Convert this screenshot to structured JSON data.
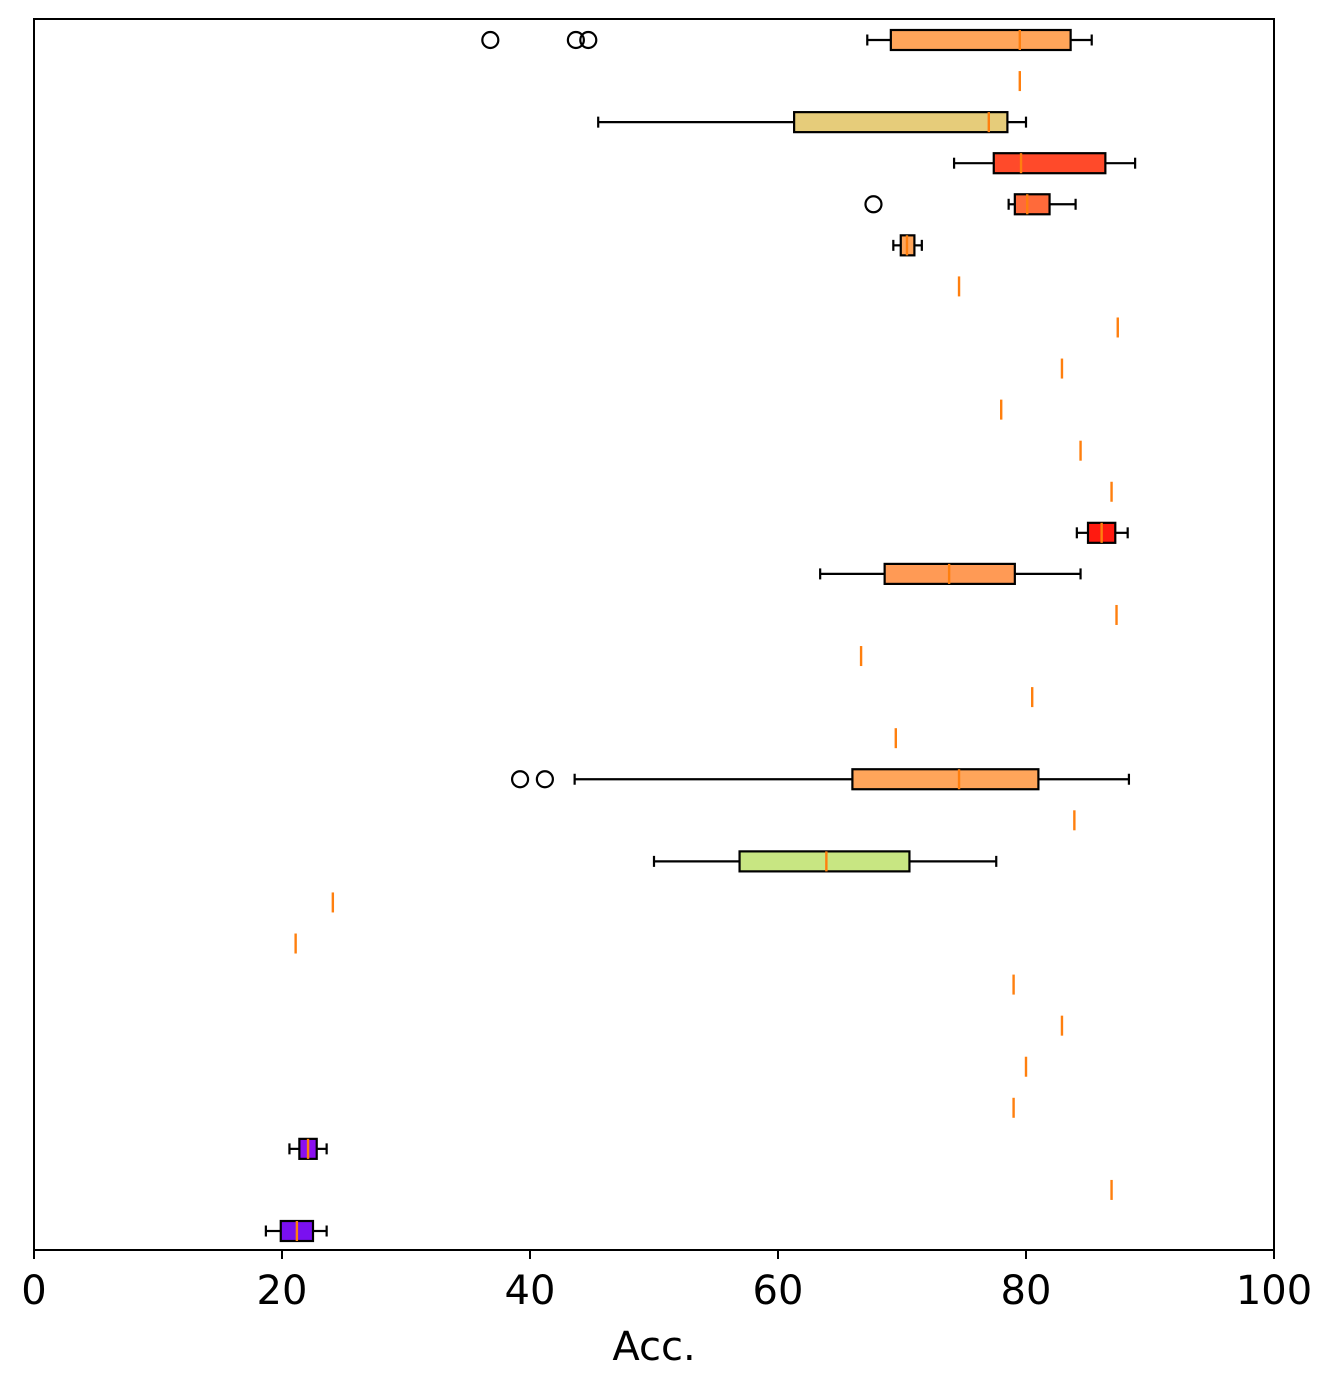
{
  "chart_data": {
    "type": "boxplot-horizontal",
    "title": "",
    "xlabel": "Acc.",
    "ylabel": "",
    "xlim": [
      0,
      100
    ],
    "xticks": [
      0,
      20,
      40,
      60,
      80,
      100
    ],
    "xtick_labels": [
      "0",
      "20",
      "40",
      "60",
      "80",
      "100"
    ],
    "grid": false,
    "median_color": "#ff7f0e",
    "boxes": [
      {
        "whislo": 67.2,
        "q1": 69.1,
        "med": 79.5,
        "q3": 83.6,
        "whishi": 85.3,
        "fliers": [
          36.8,
          43.7,
          44.7
        ],
        "color": "#ffa55a"
      },
      {
        "whislo": 79.5,
        "q1": 79.5,
        "med": 79.5,
        "q3": 79.5,
        "whishi": 79.5,
        "fliers": [],
        "color": "#ffa55a"
      },
      {
        "whislo": 45.5,
        "q1": 61.3,
        "med": 77.0,
        "q3": 78.5,
        "whishi": 80.0,
        "fliers": [],
        "color": "#e6cc7a"
      },
      {
        "whislo": 74.2,
        "q1": 77.4,
        "med": 79.6,
        "q3": 86.4,
        "whishi": 88.8,
        "fliers": [],
        "color": "#ff4a2a"
      },
      {
        "whislo": 78.6,
        "q1": 79.1,
        "med": 80.1,
        "q3": 81.9,
        "whishi": 84.0,
        "fliers": [
          67.7
        ],
        "color": "#ff6a3a"
      },
      {
        "whislo": 69.3,
        "q1": 69.9,
        "med": 70.4,
        "q3": 71.0,
        "whishi": 71.6,
        "fliers": [],
        "color": "#ffa55a"
      },
      {
        "whislo": 74.6,
        "q1": 74.6,
        "med": 74.6,
        "q3": 74.6,
        "whishi": 74.6,
        "fliers": [],
        "color": "#ffa55a"
      },
      {
        "whislo": 87.4,
        "q1": 87.4,
        "med": 87.4,
        "q3": 87.4,
        "whishi": 87.4,
        "fliers": [],
        "color": "#ff5a30"
      },
      {
        "whislo": 82.9,
        "q1": 82.9,
        "med": 82.9,
        "q3": 82.9,
        "whishi": 82.9,
        "fliers": [],
        "color": "#ff7a40"
      },
      {
        "whislo": 78.0,
        "q1": 78.0,
        "med": 78.0,
        "q3": 78.0,
        "whishi": 78.0,
        "fliers": [],
        "color": "#ff9a50"
      },
      {
        "whislo": 84.4,
        "q1": 84.4,
        "med": 84.4,
        "q3": 84.4,
        "whishi": 84.4,
        "fliers": [],
        "color": "#ff6a3a"
      },
      {
        "whislo": 86.9,
        "q1": 86.9,
        "med": 86.9,
        "q3": 86.9,
        "whishi": 86.9,
        "fliers": [],
        "color": "#ff5a30"
      },
      {
        "whislo": 84.1,
        "q1": 85.0,
        "med": 86.1,
        "q3": 87.2,
        "whishi": 88.2,
        "fliers": [],
        "color": "#ff1a10"
      },
      {
        "whislo": 63.4,
        "q1": 68.6,
        "med": 73.8,
        "q3": 79.1,
        "whishi": 84.4,
        "fliers": [],
        "color": "#ff9a55"
      },
      {
        "whislo": 87.3,
        "q1": 87.3,
        "med": 87.3,
        "q3": 87.3,
        "whishi": 87.3,
        "fliers": [],
        "color": "#ff5a30"
      },
      {
        "whislo": 66.7,
        "q1": 66.7,
        "med": 66.7,
        "q3": 66.7,
        "whishi": 66.7,
        "fliers": [],
        "color": "#ffaa60"
      },
      {
        "whislo": 80.5,
        "q1": 80.5,
        "med": 80.5,
        "q3": 80.5,
        "whishi": 80.5,
        "fliers": [],
        "color": "#ff8a48"
      },
      {
        "whislo": 69.5,
        "q1": 69.5,
        "med": 69.5,
        "q3": 69.5,
        "whishi": 69.5,
        "fliers": [],
        "color": "#ffa55a"
      },
      {
        "whislo": 43.6,
        "q1": 66.0,
        "med": 74.6,
        "q3": 81.0,
        "whishi": 88.3,
        "fliers": [
          39.2,
          41.2
        ],
        "color": "#ffa55a"
      },
      {
        "whislo": 83.9,
        "q1": 83.9,
        "med": 83.9,
        "q3": 83.9,
        "whishi": 83.9,
        "fliers": [],
        "color": "#ff6a3a"
      },
      {
        "whislo": 50.0,
        "q1": 56.9,
        "med": 63.9,
        "q3": 70.6,
        "whishi": 77.6,
        "fliers": [],
        "color": "#c8e682"
      },
      {
        "whislo": 24.1,
        "q1": 24.1,
        "med": 24.1,
        "q3": 24.1,
        "whishi": 24.1,
        "fliers": [],
        "color": "#8a2be2"
      },
      {
        "whislo": 21.1,
        "q1": 21.1,
        "med": 21.1,
        "q3": 21.1,
        "whishi": 21.1,
        "fliers": [],
        "color": "#8a10f0"
      },
      {
        "whislo": 79.0,
        "q1": 79.0,
        "med": 79.0,
        "q3": 79.0,
        "whishi": 79.0,
        "fliers": [],
        "color": "#ff9a50"
      },
      {
        "whislo": 82.9,
        "q1": 82.9,
        "med": 82.9,
        "q3": 82.9,
        "whishi": 82.9,
        "fliers": [],
        "color": "#ff7a40"
      },
      {
        "whislo": 80.0,
        "q1": 80.0,
        "med": 80.0,
        "q3": 80.0,
        "whishi": 80.0,
        "fliers": [],
        "color": "#ff8a48"
      },
      {
        "whislo": 79.0,
        "q1": 79.0,
        "med": 79.0,
        "q3": 79.0,
        "whishi": 79.0,
        "fliers": [],
        "color": "#ff9a50"
      },
      {
        "whislo": 20.6,
        "q1": 21.4,
        "med": 22.1,
        "q3": 22.8,
        "whishi": 23.6,
        "fliers": [],
        "color": "#8a10f0"
      },
      {
        "whislo": 86.9,
        "q1": 86.9,
        "med": 86.9,
        "q3": 86.9,
        "whishi": 86.9,
        "fliers": [],
        "color": "#ff5a30"
      },
      {
        "whislo": 18.7,
        "q1": 19.9,
        "med": 21.2,
        "q3": 22.5,
        "whishi": 23.6,
        "fliers": [],
        "color": "#7a10f0"
      }
    ]
  }
}
